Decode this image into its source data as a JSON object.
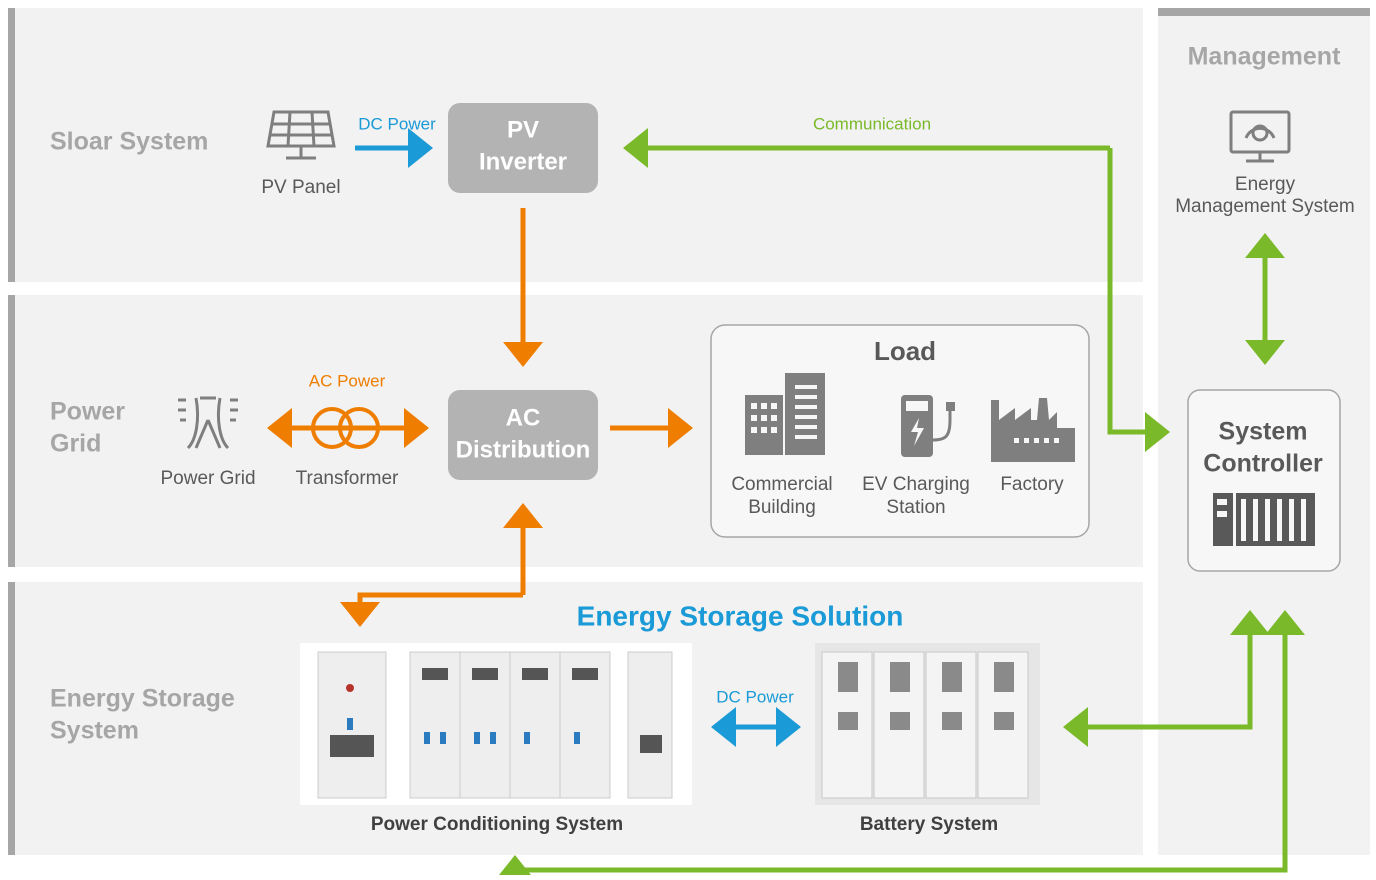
{
  "lanes": {
    "solar": {
      "title": "Sloar System"
    },
    "power_grid": {
      "title_lines": [
        "Power",
        "Grid"
      ]
    },
    "energy_storage": {
      "title_lines": [
        "Energy Storage",
        "System"
      ]
    },
    "management": {
      "title": "Management"
    }
  },
  "nodes": {
    "pv_panel": {
      "label": "PV Panel"
    },
    "pv_inverter": {
      "label_lines": [
        "PV",
        "Inverter"
      ]
    },
    "power_grid": {
      "label": "Power Grid"
    },
    "transformer": {
      "label": "Transformer"
    },
    "ac_distribution": {
      "label_lines": [
        "AC",
        "Distribution"
      ]
    },
    "load": {
      "title": "Load",
      "items": [
        {
          "label_lines": [
            "Commercial",
            "Building"
          ]
        },
        {
          "label_lines": [
            "EV Charging",
            "Station"
          ]
        },
        {
          "label_lines": [
            "Factory"
          ]
        }
      ]
    },
    "ems": {
      "label_lines": [
        "Energy",
        "Management System"
      ]
    },
    "system_controller": {
      "label_lines": [
        "System",
        "Controller"
      ]
    },
    "energy_storage_solution": {
      "title": "Energy Storage Solution"
    },
    "pcs": {
      "label": "Power Conditioning System"
    },
    "battery": {
      "label": "Battery System"
    }
  },
  "edges": {
    "dc_power_pv": "DC Power",
    "communication": "Communication",
    "ac_power": "AC Power",
    "dc_power_storage": "DC Power"
  }
}
